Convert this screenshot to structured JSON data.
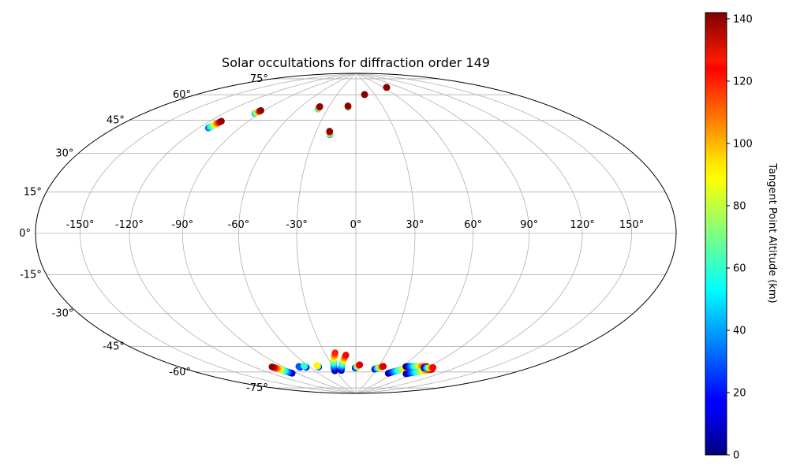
{
  "chart_data": {
    "type": "scatter",
    "projection": "hammer",
    "title": "Solar occultations for diffraction order 149",
    "x_ticks": [
      -150,
      -120,
      -90,
      -60,
      -30,
      0,
      30,
      60,
      90,
      120,
      150
    ],
    "x_tick_labels": [
      "-150°",
      "-120°",
      "-90°",
      "-60°",
      "-30°",
      "0°",
      "30°",
      "60°",
      "90°",
      "120°",
      "150°"
    ],
    "y_ticks": [
      75,
      60,
      45,
      30,
      15,
      0,
      -15,
      -30,
      -45,
      -60,
      -75
    ],
    "y_tick_labels": [
      "75°",
      "60°",
      "45°",
      "30°",
      "15°",
      "0°",
      "-15°",
      "-30°",
      "-45°",
      "-60°",
      "-75°"
    ],
    "grid": true,
    "colorbar": {
      "label": "Tangent Point Altitude (km)",
      "ticks": [
        0,
        20,
        40,
        60,
        80,
        100,
        120,
        140
      ],
      "range": [
        0,
        142
      ],
      "colormap": "jet"
    },
    "tracks": [
      {
        "lon_start": -113,
        "lat_start": 50,
        "lon_end": -111,
        "lat_end": 54,
        "alt_start": 30,
        "alt_end": 140
      },
      {
        "lon_start": -94,
        "lat_start": 60,
        "lon_end": -93,
        "lat_end": 62,
        "alt_start": 40,
        "alt_end": 140
      },
      {
        "lon_start": -40,
        "lat_start": 66,
        "lon_end": -40,
        "lat_end": 67.5,
        "alt_start": 40,
        "alt_end": 140
      },
      {
        "lon_start": -19,
        "lat_start": 51.5,
        "lon_end": -20,
        "lat_end": 53.5,
        "alt_start": 30,
        "alt_end": 140
      },
      {
        "lon_start": -8.5,
        "lat_start": 67.5,
        "lon_end": -9,
        "lat_end": 68.5,
        "alt_start": 40,
        "alt_end": 140
      },
      {
        "lon_start": 14,
        "lat_start": 75.5,
        "lon_end": 14,
        "lat_end": 75.6,
        "alt_start": 130,
        "alt_end": 141
      },
      {
        "lon_start": 66,
        "lat_start": 79,
        "lon_end": 66,
        "lat_end": 79.1,
        "alt_start": 130,
        "alt_end": 141
      },
      {
        "lon_start": -96,
        "lat_start": -73,
        "lon_end": -102,
        "lat_end": -68,
        "alt_start": 0,
        "alt_end": 140
      },
      {
        "lon_start": -72,
        "lat_start": -70.5,
        "lon_end": -72,
        "lat_end": -70,
        "alt_start": 0,
        "alt_end": 30
      },
      {
        "lon_start": -65,
        "lat_start": -71,
        "lon_end": -65,
        "lat_end": -70,
        "alt_start": 0,
        "alt_end": 60
      },
      {
        "lon_start": -49,
        "lat_start": -71.5,
        "lon_end": -49,
        "lat_end": -70.5,
        "alt_start": 0,
        "alt_end": 90
      },
      {
        "lon_start": -32,
        "lat_start": -74.5,
        "lon_end": -20,
        "lat_end": -63.5,
        "alt_start": 0,
        "alt_end": 120
      },
      {
        "lon_start": -22,
        "lat_start": -74.5,
        "lon_end": -10,
        "lat_end": -65,
        "alt_start": 0,
        "alt_end": 125
      },
      {
        "lon_start": -1,
        "lat_start": -73,
        "lon_end": 5,
        "lat_end": -71,
        "alt_start": 0,
        "alt_end": 130
      },
      {
        "lon_start": 27,
        "lat_start": -73.5,
        "lon_end": 36,
        "lat_end": -71.5,
        "alt_start": 0,
        "alt_end": 130
      },
      {
        "lon_start": 53,
        "lat_start": -75.5,
        "lon_end": 72,
        "lat_end": -70,
        "alt_start": 0,
        "alt_end": 130
      },
      {
        "lon_start": 64,
        "lat_start": -70.5,
        "lon_end": 88,
        "lat_end": -69,
        "alt_start": 0,
        "alt_end": 135
      },
      {
        "lon_start": 80,
        "lat_start": -74.5,
        "lon_end": 100,
        "lat_end": -70,
        "alt_start": 0,
        "alt_end": 130
      },
      {
        "lon_start": 88,
        "lat_start": -70,
        "lon_end": 97,
        "lat_end": -69,
        "alt_start": 0,
        "alt_end": 125
      }
    ]
  }
}
